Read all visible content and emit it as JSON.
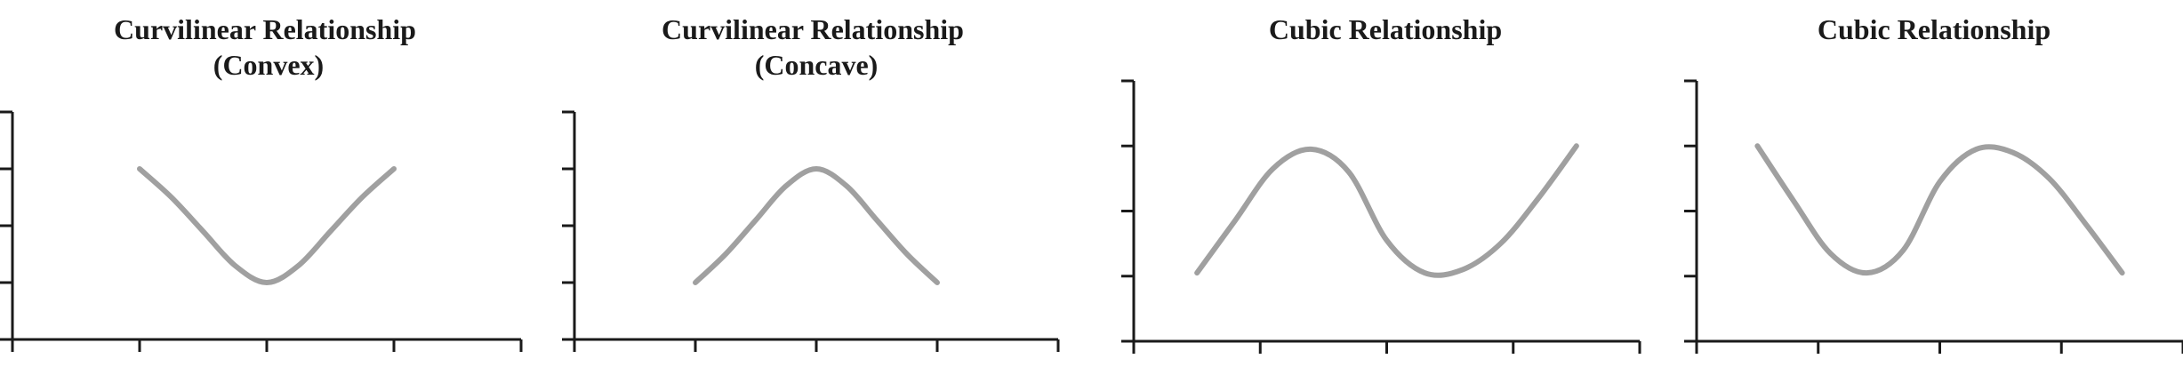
{
  "colors": {
    "curve": "#a0a0a0",
    "axis": "#1a1a1a",
    "title": "#1a1a1a"
  },
  "chart_data": [
    {
      "type": "line",
      "title": "Curvilinear Relationship\n(Convex)",
      "xlabel": "",
      "ylabel": "",
      "xlim": [
        0,
        4
      ],
      "ylim": [
        0,
        4
      ],
      "grid": false,
      "x_ticks": [
        0,
        1,
        2,
        3,
        4
      ],
      "y_ticks": [
        0,
        1,
        2,
        3,
        4
      ],
      "series": [
        {
          "x": [
            1,
            1.25,
            1.5,
            1.75,
            2,
            2.25,
            2.5,
            2.75,
            3
          ],
          "y": [
            3,
            2.5,
            1.9,
            1.3,
            1,
            1.3,
            1.9,
            2.5,
            3
          ]
        }
      ]
    },
    {
      "type": "line",
      "title": "Curvilinear Relationship\n(Concave)",
      "xlabel": "",
      "ylabel": "",
      "xlim": [
        0,
        4
      ],
      "ylim": [
        0,
        4
      ],
      "grid": false,
      "x_ticks": [
        0,
        1,
        2,
        3,
        4
      ],
      "y_ticks": [
        0,
        1,
        2,
        3,
        4
      ],
      "series": [
        {
          "x": [
            1,
            1.25,
            1.5,
            1.75,
            2,
            2.25,
            2.5,
            2.75,
            3
          ],
          "y": [
            1,
            1.5,
            2.1,
            2.7,
            3,
            2.7,
            2.1,
            1.5,
            1
          ]
        }
      ]
    },
    {
      "type": "line",
      "title": "Cubic Relationship",
      "xlabel": "",
      "ylabel": "",
      "xlim": [
        0,
        4
      ],
      "ylim": [
        0,
        4
      ],
      "grid": false,
      "x_ticks": [
        0,
        1,
        2,
        3,
        4
      ],
      "y_ticks": [
        0,
        1,
        2,
        3,
        4
      ],
      "series": [
        {
          "x": [
            0.5,
            0.8,
            1.1,
            1.4,
            1.7,
            2.0,
            2.3,
            2.6,
            2.9,
            3.2,
            3.5
          ],
          "y": [
            1.05,
            1.85,
            2.65,
            2.95,
            2.6,
            1.55,
            1.05,
            1.1,
            1.5,
            2.2,
            3.0
          ]
        }
      ]
    },
    {
      "type": "line",
      "title": "Cubic Relationship",
      "xlabel": "",
      "ylabel": "",
      "xlim": [
        0,
        4
      ],
      "ylim": [
        0,
        4
      ],
      "grid": false,
      "x_ticks": [
        0,
        1,
        2,
        3,
        4
      ],
      "y_ticks": [
        0,
        1,
        2,
        3,
        4
      ],
      "series": [
        {
          "x": [
            0.5,
            0.8,
            1.1,
            1.4,
            1.7,
            2.0,
            2.3,
            2.6,
            2.9,
            3.2,
            3.5
          ],
          "y": [
            3.0,
            2.15,
            1.35,
            1.05,
            1.4,
            2.45,
            2.95,
            2.9,
            2.5,
            1.8,
            1.05
          ]
        }
      ]
    }
  ]
}
